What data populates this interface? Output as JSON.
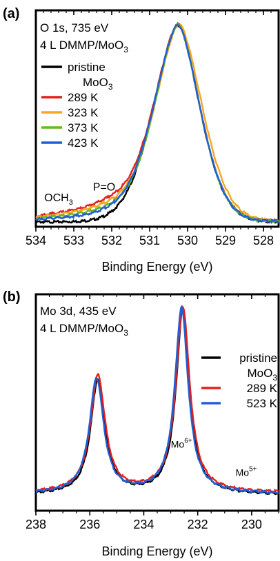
{
  "chart_data": [
    {
      "panel": "(a)",
      "type": "line",
      "title": "O 1s, 735 eV",
      "subtitle": "4 L DMMP/MoO",
      "subtitle_sub": "3",
      "xlabel": "Binding Energy (eV)",
      "xlim": [
        534,
        527.6
      ],
      "x_reversed": true,
      "xticks": [
        534,
        533,
        532,
        531,
        530,
        529,
        528
      ],
      "y_axis_shown": false,
      "grid": false,
      "legend_placement": "top-left",
      "annotations": [
        {
          "text": "OCH",
          "sub": "3",
          "x": 533.4,
          "y": 0.055
        },
        {
          "text": "P=O",
          "x": 532.2,
          "y": 0.11
        }
      ],
      "series": [
        {
          "name": "pristine",
          "name_line2": "MoO",
          "name_line2_sub": "3",
          "color": "#000000",
          "peak_x": 530.25,
          "peak_y": 1.0,
          "width_left": 0.62,
          "width_right": 0.55,
          "baseline": 0.0,
          "shoulder": 0.0
        },
        {
          "name": "289 K",
          "color": "#e4201c",
          "peak_x": 530.25,
          "peak_y": 1.0,
          "width_left": 0.62,
          "width_right": 0.55,
          "baseline": 0.005,
          "shoulder": 0.055
        },
        {
          "name": "323 K",
          "color": "#f5a623",
          "peak_x": 530.22,
          "peak_y": 1.0,
          "width_left": 0.62,
          "width_right": 0.58,
          "baseline": 0.004,
          "shoulder": 0.045
        },
        {
          "name": "373 K",
          "color": "#66bb22",
          "peak_x": 530.25,
          "peak_y": 1.0,
          "width_left": 0.6,
          "width_right": 0.55,
          "baseline": 0.003,
          "shoulder": 0.035
        },
        {
          "name": "423 K",
          "color": "#1f5fd6",
          "peak_x": 530.25,
          "peak_y": 1.0,
          "width_left": 0.62,
          "width_right": 0.55,
          "baseline": 0.002,
          "shoulder": 0.025
        }
      ]
    },
    {
      "panel": "(b)",
      "type": "line",
      "title": "Mo 3d, 435 eV",
      "subtitle": "4 L DMMP/MoO",
      "subtitle_sub": "3",
      "xlabel": "Binding Energy (eV)",
      "xlim": [
        238,
        229
      ],
      "x_reversed": true,
      "xticks": [
        238,
        236,
        234,
        232,
        230
      ],
      "y_axis_shown": false,
      "grid": false,
      "legend_placement": "top-right",
      "annotations": [
        {
          "text": "Mo",
          "sup": "6+",
          "x": 232.6,
          "y": 0.2
        },
        {
          "text": "Mo",
          "sup": "5+",
          "x": 230.2,
          "y": 0.05
        }
      ],
      "series": [
        {
          "name": "pristine",
          "name_line2": "MoO",
          "name_line2_sub": "3",
          "color": "#000000",
          "peaks": [
            [
              235.7,
              0.62,
              0.32
            ],
            [
              232.55,
              1.0,
              0.3
            ]
          ],
          "baseline": 0.0
        },
        {
          "name": "289 K",
          "color": "#e4201c",
          "peaks": [
            [
              235.7,
              0.63,
              0.33
            ],
            [
              232.55,
              1.0,
              0.31
            ]
          ],
          "baseline": 0.01
        },
        {
          "name": "523 K",
          "color": "#1f5fd6",
          "peaks": [
            [
              235.75,
              0.62,
              0.32
            ],
            [
              232.6,
              1.0,
              0.3
            ]
          ],
          "baseline": 0.005
        }
      ]
    }
  ]
}
